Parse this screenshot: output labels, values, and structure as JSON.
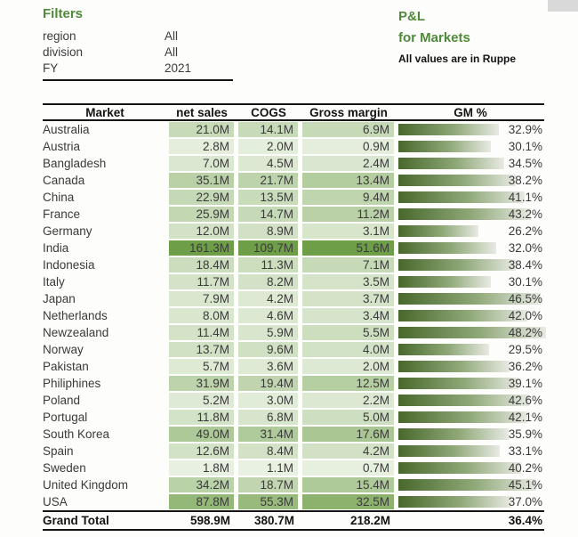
{
  "filters": {
    "title": "Filters",
    "items": [
      {
        "label": "region",
        "value": "All"
      },
      {
        "label": "division",
        "value": "All"
      },
      {
        "label": "FY",
        "value": "2021"
      }
    ]
  },
  "report_header": {
    "title": "P&L",
    "subtitle": "for Markets",
    "note": "All values are in Ruppe"
  },
  "colors": {
    "accent_green": "#4e8a38",
    "cell_scale_light": "#f3f8ef",
    "cell_scale_dark": "#6e9e48",
    "bar_gradient_start": "#49682c",
    "bar_gradient_end": "#e8eae3",
    "border_black": "#141414",
    "body_text": "#3a3a3a"
  },
  "chart_data": {
    "type": "table",
    "title": "P&L for Markets",
    "values_note": "All values are in Ruppe",
    "columns": [
      "Market",
      "net sales",
      "COGS",
      "Gross margin",
      "GM %"
    ],
    "value_suffix": "M",
    "gm_bar_scale_max": 48.2,
    "rows": [
      {
        "market": "Australia",
        "net_sales": 21.0,
        "cogs": 14.1,
        "gross_margin": 6.9,
        "gm_pct": 32.9
      },
      {
        "market": "Austria",
        "net_sales": 2.8,
        "cogs": 2.0,
        "gross_margin": 0.9,
        "gm_pct": 30.1
      },
      {
        "market": "Bangladesh",
        "net_sales": 7.0,
        "cogs": 4.5,
        "gross_margin": 2.4,
        "gm_pct": 34.5
      },
      {
        "market": "Canada",
        "net_sales": 35.1,
        "cogs": 21.7,
        "gross_margin": 13.4,
        "gm_pct": 38.2
      },
      {
        "market": "China",
        "net_sales": 22.9,
        "cogs": 13.5,
        "gross_margin": 9.4,
        "gm_pct": 41.1
      },
      {
        "market": "France",
        "net_sales": 25.9,
        "cogs": 14.7,
        "gross_margin": 11.2,
        "gm_pct": 43.2
      },
      {
        "market": "Germany",
        "net_sales": 12.0,
        "cogs": 8.9,
        "gross_margin": 3.1,
        "gm_pct": 26.2
      },
      {
        "market": "India",
        "net_sales": 161.3,
        "cogs": 109.7,
        "gross_margin": 51.6,
        "gm_pct": 32.0
      },
      {
        "market": "Indonesia",
        "net_sales": 18.4,
        "cogs": 11.3,
        "gross_margin": 7.1,
        "gm_pct": 38.4
      },
      {
        "market": "Italy",
        "net_sales": 11.7,
        "cogs": 8.2,
        "gross_margin": 3.5,
        "gm_pct": 30.1
      },
      {
        "market": "Japan",
        "net_sales": 7.9,
        "cogs": 4.2,
        "gross_margin": 3.7,
        "gm_pct": 46.5
      },
      {
        "market": "Netherlands",
        "net_sales": 8.0,
        "cogs": 4.6,
        "gross_margin": 3.4,
        "gm_pct": 42.0
      },
      {
        "market": "Newzealand",
        "net_sales": 11.4,
        "cogs": 5.9,
        "gross_margin": 5.5,
        "gm_pct": 48.2
      },
      {
        "market": "Norway",
        "net_sales": 13.7,
        "cogs": 9.6,
        "gross_margin": 4.0,
        "gm_pct": 29.5
      },
      {
        "market": "Pakistan",
        "net_sales": 5.7,
        "cogs": 3.6,
        "gross_margin": 2.0,
        "gm_pct": 36.2
      },
      {
        "market": "Philiphines",
        "net_sales": 31.9,
        "cogs": 19.4,
        "gross_margin": 12.5,
        "gm_pct": 39.1
      },
      {
        "market": "Poland",
        "net_sales": 5.2,
        "cogs": 3.0,
        "gross_margin": 2.2,
        "gm_pct": 42.6
      },
      {
        "market": "Portugal",
        "net_sales": 11.8,
        "cogs": 6.8,
        "gross_margin": 5.0,
        "gm_pct": 42.1
      },
      {
        "market": "South Korea",
        "net_sales": 49.0,
        "cogs": 31.4,
        "gross_margin": 17.6,
        "gm_pct": 35.9
      },
      {
        "market": "Spain",
        "net_sales": 12.6,
        "cogs": 8.4,
        "gross_margin": 4.2,
        "gm_pct": 33.1
      },
      {
        "market": "Sweden",
        "net_sales": 1.8,
        "cogs": 1.1,
        "gross_margin": 0.7,
        "gm_pct": 40.2
      },
      {
        "market": "United Kingdom",
        "net_sales": 34.2,
        "cogs": 18.7,
        "gross_margin": 15.4,
        "gm_pct": 45.1
      },
      {
        "market": "USA",
        "net_sales": 87.8,
        "cogs": 55.3,
        "gross_margin": 32.5,
        "gm_pct": 37.0
      }
    ],
    "grand_total": {
      "label": "Grand Total",
      "net_sales": "598.9M",
      "cogs": "380.7M",
      "gross_margin": "218.2M",
      "gm_pct": "36.4%"
    }
  }
}
